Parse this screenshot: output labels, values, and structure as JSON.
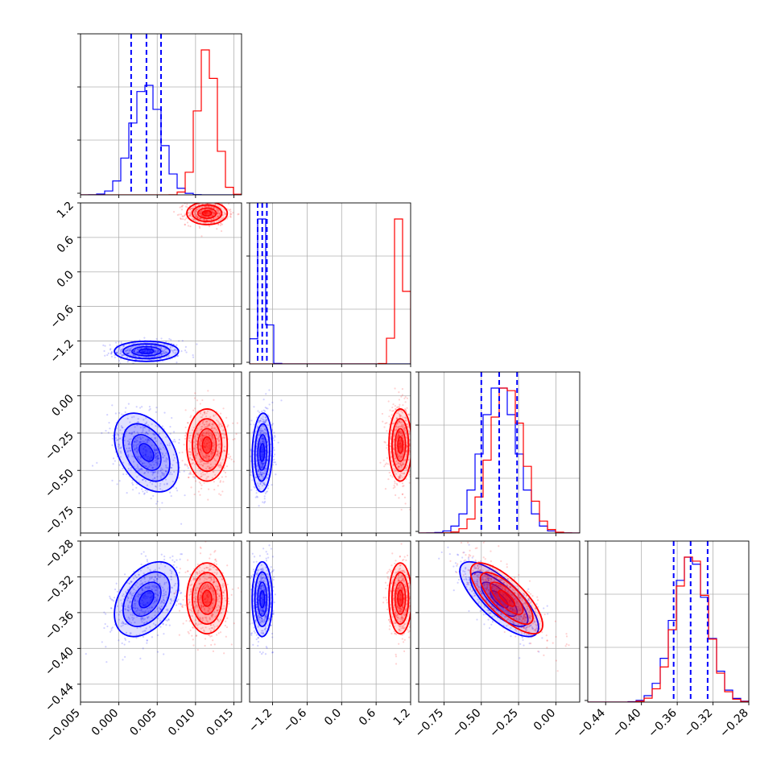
{
  "chart_data": {
    "type": "corner",
    "parameters": [
      {
        "range": [
          -0.005,
          0.016
        ],
        "ticks": [
          "−0.005",
          "0.000",
          "0.005",
          "0.010",
          "0.015"
        ],
        "tick_values": [
          -0.005,
          0.0,
          0.005,
          0.01,
          0.015
        ]
      },
      {
        "range": [
          -1.6,
          1.2
        ],
        "ticks": [
          "−1.2",
          "−0.6",
          "0.0",
          "0.6",
          "1.2"
        ],
        "tick_values": [
          -1.2,
          -0.6,
          0.0,
          0.6,
          1.2
        ]
      },
      {
        "range": [
          -0.92,
          0.16
        ],
        "ticks": [
          "−0.75",
          "−0.50",
          "−0.25",
          "0.00"
        ],
        "tick_values": [
          -0.75,
          -0.5,
          -0.25,
          0.0
        ]
      },
      {
        "range": [
          -0.46,
          -0.28
        ],
        "ticks": [
          "−0.44",
          "−0.40",
          "−0.36",
          "−0.32",
          "−0.28"
        ],
        "tick_values": [
          -0.44,
          -0.4,
          -0.36,
          -0.32,
          -0.28
        ]
      }
    ],
    "series": [
      {
        "color": "#0000ff",
        "means": [
          0.0036,
          -1.38,
          -0.38,
          -0.345
        ],
        "stds": [
          0.0019,
          0.08,
          0.12,
          0.019
        ],
        "corr": {
          "2-0": -0.4,
          "3-0": 0.4,
          "3-2": -0.75,
          "2-1": 0.1,
          "3-1": 0.0
        },
        "quantiles": [
          [
            0.0016,
            0.0036,
            0.0055
          ],
          [
            -1.46,
            -1.38,
            -1.3
          ],
          [
            -0.5,
            -0.38,
            -0.26
          ],
          [
            -0.364,
            -0.345,
            -0.326
          ]
        ]
      },
      {
        "color": "#ff0000",
        "means": [
          0.0115,
          1.02,
          -0.33,
          -0.344
        ],
        "stds": [
          0.0012,
          0.09,
          0.11,
          0.018
        ],
        "corr": {
          "2-0": 0.0,
          "3-0": 0.0,
          "3-2": -0.75,
          "2-1": 0.0,
          "3-1": 0.0
        },
        "quantiles": null
      }
    ],
    "grid": true
  },
  "icons": {
    "diag": "histogram",
    "offdiag": "contour-scatter"
  }
}
